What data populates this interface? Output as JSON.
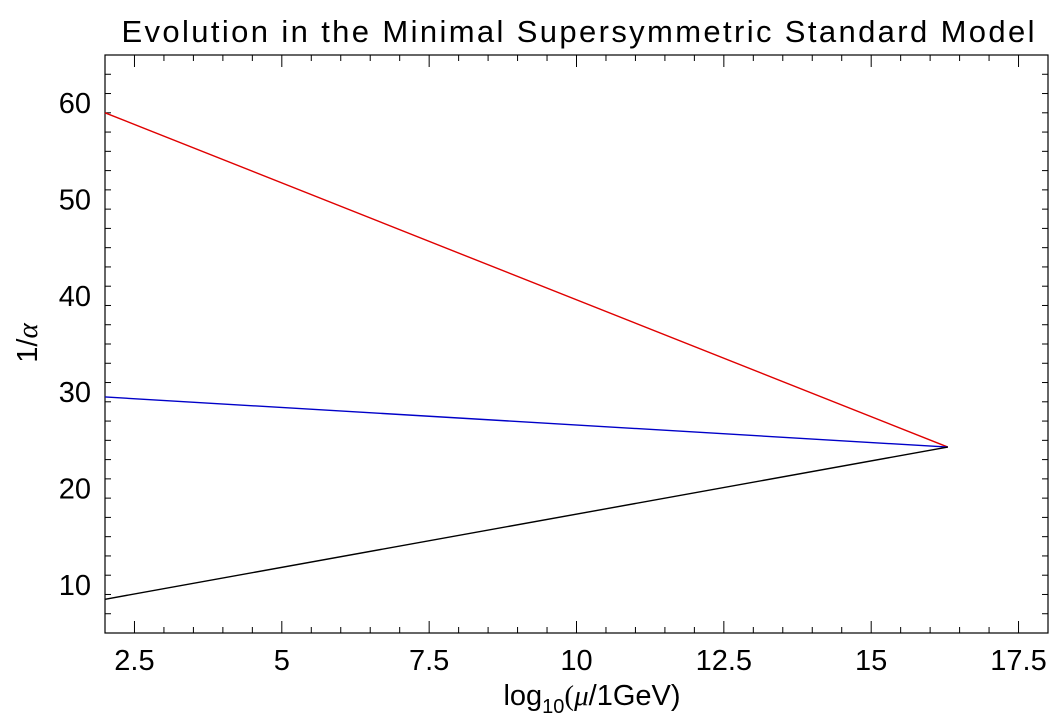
{
  "chart_data": {
    "type": "line",
    "title": "Evolution in the Minimal Supersymmetric Standard Model",
    "xlabel": {
      "prefix": "log",
      "sub": "10",
      "open": "(",
      "mu": "μ",
      "rest": "/1GeV)"
    },
    "ylabel": {
      "one": "1/",
      "alpha": "α"
    },
    "xlim": [
      2.0,
      18.0
    ],
    "ylim": [
      5.0,
      65.0
    ],
    "x_ticks": [
      {
        "value": 2.5,
        "label": "2.5"
      },
      {
        "value": 5,
        "label": "5"
      },
      {
        "value": 7.5,
        "label": "7.5"
      },
      {
        "value": 10,
        "label": "10"
      },
      {
        "value": 12.5,
        "label": "12.5"
      },
      {
        "value": 15,
        "label": "15"
      },
      {
        "value": 17.5,
        "label": "17.5"
      }
    ],
    "y_ticks": [
      {
        "value": 10,
        "label": "10"
      },
      {
        "value": 20,
        "label": "20"
      },
      {
        "value": 30,
        "label": "30"
      },
      {
        "value": 40,
        "label": "40"
      },
      {
        "value": 50,
        "label": "50"
      },
      {
        "value": 60,
        "label": "60"
      }
    ],
    "grid": false,
    "series": [
      {
        "color": "#e00000",
        "points": [
          [
            2.0,
            59.0
          ],
          [
            16.3,
            24.3
          ]
        ]
      },
      {
        "color": "#0000c8",
        "points": [
          [
            2.0,
            29.5
          ],
          [
            16.3,
            24.3
          ]
        ]
      },
      {
        "color": "#000000",
        "points": [
          [
            2.0,
            8.5
          ],
          [
            16.3,
            24.3
          ]
        ]
      }
    ]
  }
}
